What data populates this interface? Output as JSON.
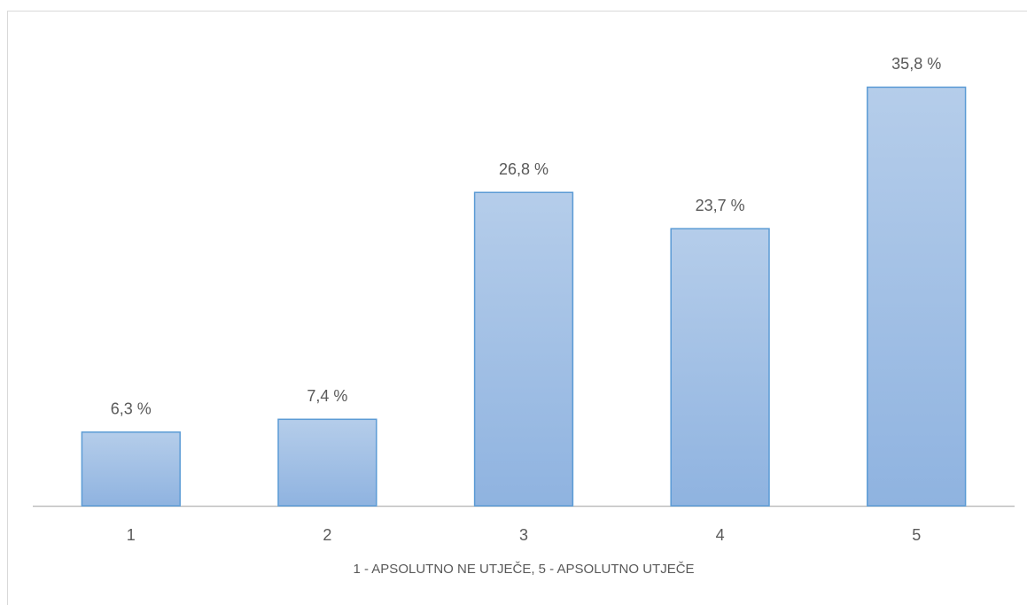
{
  "chart_data": {
    "type": "bar",
    "x_label": "1 - APSOLUTNO NE UTJEČE, 5 - APSOLUTNO UTJEČE",
    "categories": [
      "1",
      "2",
      "3",
      "4",
      "5"
    ],
    "values": [
      6.3,
      7.4,
      26.8,
      23.7,
      35.8
    ],
    "value_labels": [
      "6,3 %",
      "7,4 %",
      "26,8 %",
      "23,7 %",
      "35,8 %"
    ],
    "color": "#9dbde6",
    "ylim": [
      0,
      40
    ]
  }
}
